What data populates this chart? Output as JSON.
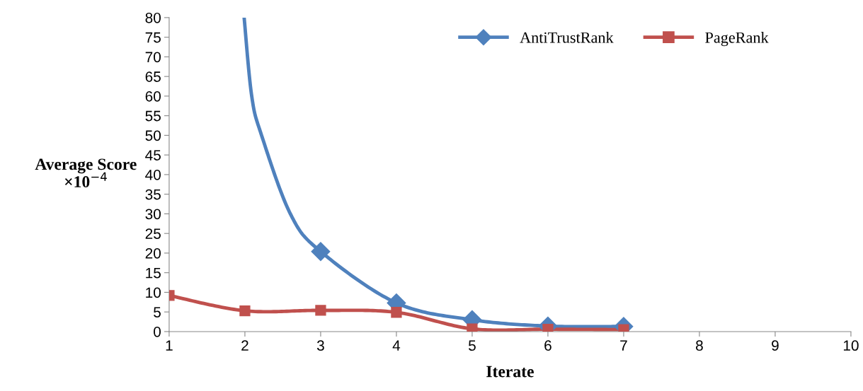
{
  "chart_data": {
    "type": "line",
    "xlabel": "Iterate",
    "ylabel": "Average Score\n×10$^{−4}$",
    "xlim": [
      1,
      10
    ],
    "xticks": [
      1,
      2,
      3,
      4,
      5,
      6,
      7,
      8,
      9,
      10
    ],
    "ylim": [
      0,
      80
    ],
    "yticks": [
      0,
      5,
      10,
      15,
      20,
      25,
      30,
      35,
      40,
      45,
      50,
      55,
      60,
      65,
      70,
      75,
      80
    ],
    "grid": false,
    "legend": "top right",
    "line_style": "solid",
    "series": [
      {
        "name": "AntiTrustRank",
        "color": "#4f81bd",
        "marker": "diamond",
        "x": [
          1.99,
          2.09,
          2.22,
          2.6,
          3,
          4,
          5,
          6,
          7
        ],
        "values": [
          80,
          60,
          50,
          30,
          20.4,
          7.3,
          3.0,
          1.4,
          1.3
        ]
      },
      {
        "name": "PageRank",
        "color": "#c0504d",
        "marker": "square",
        "x": [
          1,
          2,
          3,
          4,
          5,
          6,
          7
        ],
        "values": [
          9.2,
          5.3,
          5.4,
          4.9,
          0.7,
          0.6,
          0.5
        ]
      }
    ]
  }
}
